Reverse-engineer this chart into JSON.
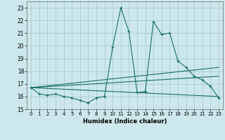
{
  "title": "",
  "xlabel": "Humidex (Indice chaleur)",
  "background_color": "#cce8ec",
  "grid_color": "#aacccc",
  "line_color": "#1a6e6a",
  "xlim": [
    -0.5,
    23.5
  ],
  "ylim": [
    15,
    23.5
  ],
  "yticks": [
    15,
    16,
    17,
    18,
    19,
    20,
    21,
    22,
    23
  ],
  "xticks": [
    0,
    1,
    2,
    3,
    4,
    5,
    6,
    7,
    8,
    9,
    10,
    11,
    12,
    13,
    14,
    15,
    16,
    17,
    18,
    19,
    20,
    21,
    22,
    23
  ],
  "series_main_x": [
    0,
    1,
    2,
    3,
    4,
    5,
    6,
    7,
    8,
    9,
    10,
    11,
    12,
    13,
    14,
    15,
    16,
    17,
    18,
    19,
    20,
    21,
    22,
    23
  ],
  "series_main_y": [
    16.7,
    16.2,
    16.1,
    16.2,
    16.0,
    15.9,
    15.7,
    15.5,
    15.9,
    16.0,
    19.9,
    23.0,
    21.1,
    16.3,
    16.4,
    21.9,
    20.9,
    21.0,
    18.8,
    18.3,
    17.6,
    17.3,
    16.8,
    15.9
  ],
  "line1_x": [
    0,
    23
  ],
  "line1_y": [
    16.7,
    16.0
  ],
  "line2_x": [
    0,
    23
  ],
  "line2_y": [
    16.7,
    17.6
  ],
  "line3_x": [
    0,
    23
  ],
  "line3_y": [
    16.7,
    18.3
  ]
}
